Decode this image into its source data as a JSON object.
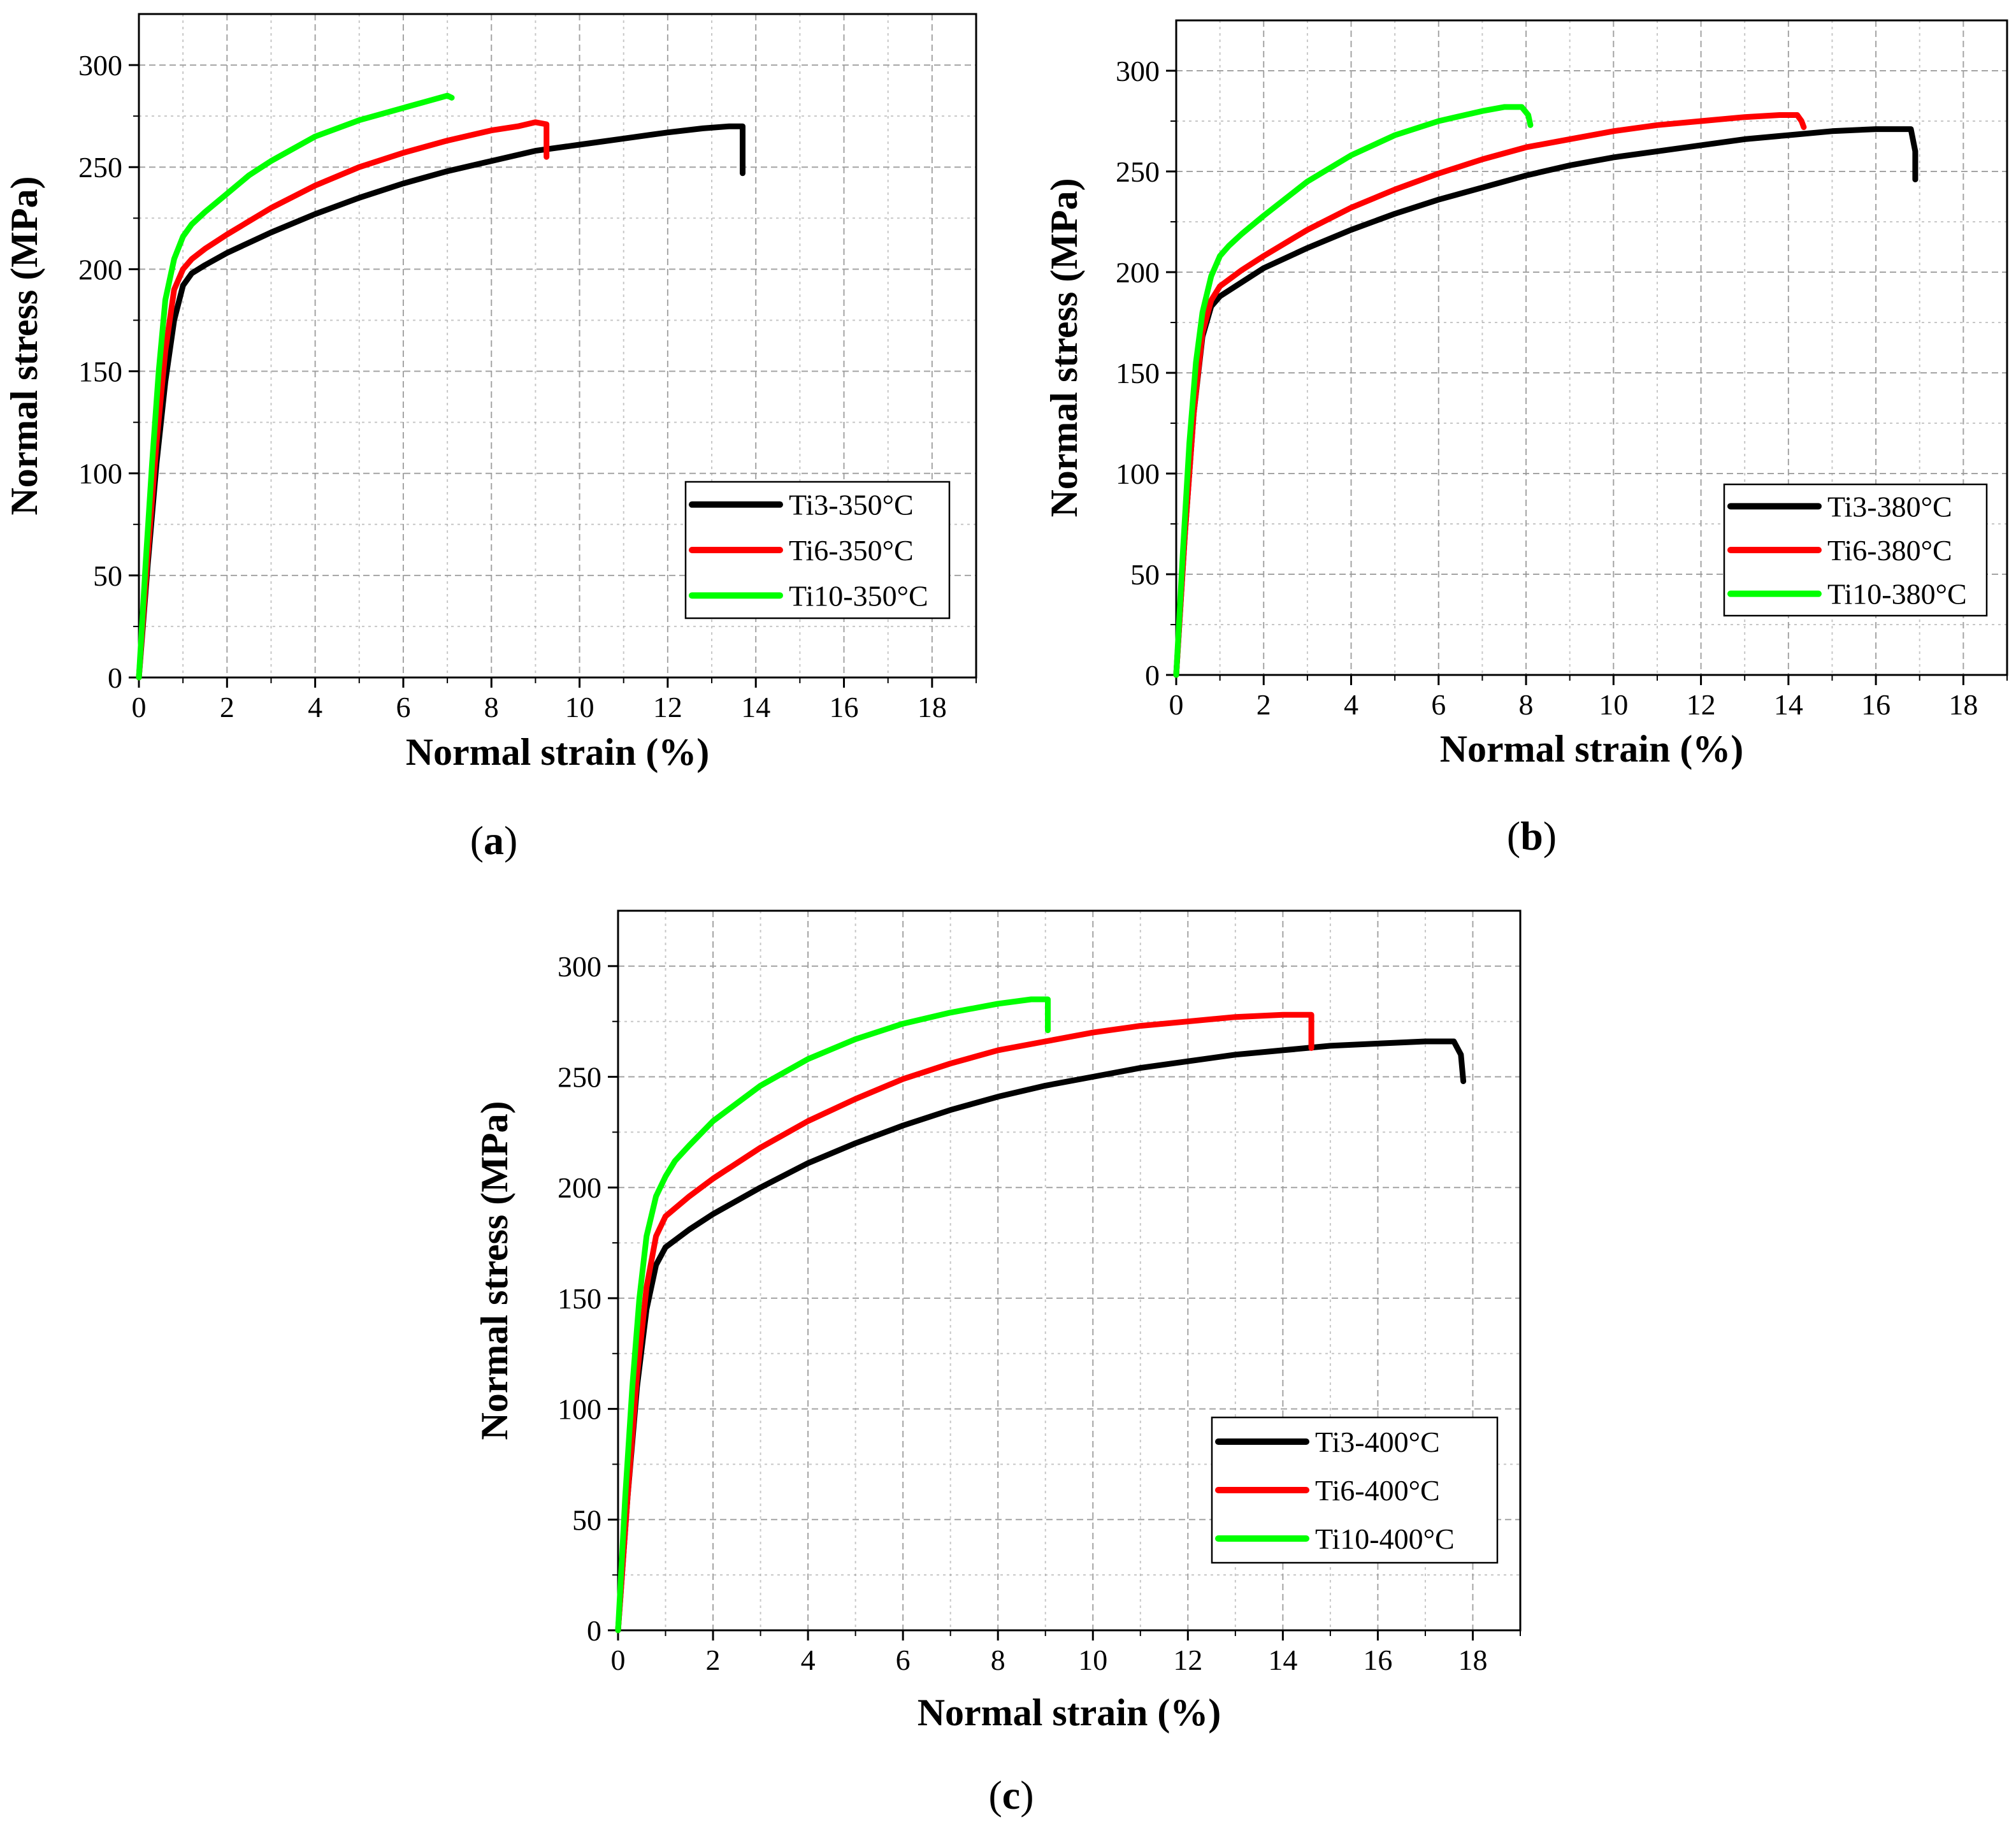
{
  "figure": {
    "panels": [
      {
        "id": "a",
        "label_open": "(",
        "label_letter": "a",
        "label_close": ")"
      },
      {
        "id": "b",
        "label_open": "(",
        "label_letter": "b",
        "label_close": ")"
      },
      {
        "id": "c",
        "label_open": "(",
        "label_letter": "c",
        "label_close": ")"
      }
    ]
  },
  "colors": {
    "Ti3": "#000000",
    "Ti6": "#ff0000",
    "Ti10": "#00ff00",
    "grid": "#9a9a9a",
    "axis": "#000000"
  },
  "chart_data": [
    {
      "type": "line",
      "panel": "a",
      "xlabel": "Normal strain (%)",
      "ylabel": "Normal stress (MPa)",
      "xlim": [
        0,
        19
      ],
      "ylim": [
        0,
        325
      ],
      "xticks": [
        0,
        2,
        4,
        6,
        8,
        10,
        12,
        14,
        16,
        18
      ],
      "yticks": [
        0,
        50,
        100,
        150,
        200,
        250,
        300
      ],
      "grid": true,
      "legend": "bottom-right",
      "series": [
        {
          "name": "Ti3-350°C",
          "color_key": "Ti3",
          "x": [
            0,
            0.2,
            0.4,
            0.6,
            0.8,
            1.0,
            1.2,
            1.5,
            2,
            3,
            4,
            5,
            6,
            7,
            8,
            9,
            10,
            11,
            12,
            12.8,
            13.4,
            13.7,
            13.7,
            13.7
          ],
          "y": [
            0,
            55,
            105,
            145,
            175,
            192,
            198,
            202,
            208,
            218,
            227,
            235,
            242,
            248,
            253,
            258,
            261,
            264,
            267,
            269,
            270,
            270,
            262,
            247
          ]
        },
        {
          "name": "Ti6-350°C",
          "color_key": "Ti6",
          "x": [
            0,
            0.2,
            0.4,
            0.6,
            0.8,
            1.0,
            1.2,
            1.5,
            2,
            3,
            4,
            5,
            6,
            7,
            8,
            8.6,
            9.0,
            9.25,
            9.25,
            9.25
          ],
          "y": [
            0,
            60,
            115,
            160,
            190,
            200,
            205,
            210,
            217,
            230,
            241,
            250,
            257,
            263,
            268,
            270,
            272,
            271,
            263,
            255
          ]
        },
        {
          "name": "Ti10-350°C",
          "color_key": "Ti10",
          "x": [
            0,
            0.15,
            0.3,
            0.45,
            0.6,
            0.8,
            1.0,
            1.2,
            1.5,
            2,
            2.5,
            3,
            4,
            5,
            6,
            6.5,
            7.0,
            7.1
          ],
          "y": [
            0,
            55,
            105,
            150,
            185,
            205,
            216,
            222,
            228,
            237,
            246,
            253,
            265,
            273,
            279,
            282,
            285,
            284
          ]
        }
      ]
    },
    {
      "type": "line",
      "panel": "b",
      "xlabel": "Normal strain (%)",
      "ylabel": "Normal stress (MPa)",
      "xlim": [
        0,
        19
      ],
      "ylim": [
        0,
        325
      ],
      "xticks": [
        0,
        2,
        4,
        6,
        8,
        10,
        12,
        14,
        16,
        18
      ],
      "yticks": [
        0,
        50,
        100,
        150,
        200,
        250,
        300
      ],
      "grid": true,
      "legend": "bottom-right",
      "series": [
        {
          "name": "Ti3-380°C",
          "color_key": "Ti3",
          "x": [
            0,
            0.2,
            0.4,
            0.6,
            0.8,
            1.0,
            1.5,
            2,
            3,
            4,
            5,
            6,
            7,
            8,
            9,
            10,
            11,
            12,
            13,
            14,
            15,
            16,
            16.8,
            16.9,
            16.9
          ],
          "y": [
            0,
            70,
            130,
            168,
            183,
            188,
            195,
            202,
            212,
            221,
            229,
            236,
            242,
            248,
            253,
            257,
            260,
            263,
            266,
            268,
            270,
            271,
            271,
            260,
            246
          ]
        },
        {
          "name": "Ti6-380°C",
          "color_key": "Ti6",
          "x": [
            0,
            0.2,
            0.4,
            0.6,
            0.8,
            1.0,
            1.5,
            2,
            3,
            4,
            5,
            6,
            7,
            8,
            9,
            10,
            11,
            12,
            13,
            13.8,
            14.2,
            14.3,
            14.35
          ],
          "y": [
            0,
            70,
            130,
            170,
            186,
            193,
            201,
            208,
            221,
            232,
            241,
            249,
            256,
            262,
            266,
            270,
            273,
            275,
            277,
            278,
            278,
            275,
            272
          ]
        },
        {
          "name": "Ti10-380°C",
          "color_key": "Ti10",
          "x": [
            0,
            0.15,
            0.3,
            0.45,
            0.6,
            0.8,
            1.0,
            1.2,
            1.5,
            2,
            3,
            4,
            5,
            6,
            7,
            7.5,
            7.9,
            8.05,
            8.1
          ],
          "y": [
            0,
            60,
            115,
            155,
            180,
            198,
            208,
            213,
            219,
            228,
            245,
            258,
            268,
            275,
            280,
            282,
            282,
            278,
            273
          ]
        }
      ]
    },
    {
      "type": "line",
      "panel": "c",
      "xlabel": "Normal strain (%)",
      "ylabel": "Normal stress (MPa)",
      "xlim": [
        0,
        19
      ],
      "ylim": [
        0,
        325
      ],
      "xticks": [
        0,
        2,
        4,
        6,
        8,
        10,
        12,
        14,
        16,
        18
      ],
      "yticks": [
        0,
        50,
        100,
        150,
        200,
        250,
        300
      ],
      "grid": true,
      "legend": "bottom-right",
      "series": [
        {
          "name": "Ti3-400°C",
          "color_key": "Ti3",
          "x": [
            0,
            0.2,
            0.4,
            0.6,
            0.8,
            1.0,
            1.5,
            2,
            3,
            4,
            5,
            6,
            7,
            8,
            9,
            10,
            11,
            12,
            13,
            14,
            15,
            16,
            17,
            17.6,
            17.75,
            17.8
          ],
          "y": [
            0,
            60,
            110,
            145,
            165,
            173,
            181,
            188,
            200,
            211,
            220,
            228,
            235,
            241,
            246,
            250,
            254,
            257,
            260,
            262,
            264,
            265,
            266,
            266,
            260,
            248
          ]
        },
        {
          "name": "Ti6-400°C",
          "color_key": "Ti6",
          "x": [
            0,
            0.2,
            0.4,
            0.6,
            0.8,
            1.0,
            1.5,
            2,
            3,
            4,
            5,
            6,
            7,
            8,
            9,
            10,
            11,
            12,
            13,
            14,
            14.6,
            14.6,
            14.6
          ],
          "y": [
            0,
            60,
            115,
            155,
            178,
            187,
            196,
            204,
            218,
            230,
            240,
            249,
            256,
            262,
            266,
            270,
            273,
            275,
            277,
            278,
            278,
            270,
            263
          ]
        },
        {
          "name": "Ti10-400°C",
          "color_key": "Ti10",
          "x": [
            0,
            0.15,
            0.3,
            0.45,
            0.6,
            0.8,
            1.0,
            1.2,
            1.5,
            2,
            3,
            4,
            5,
            6,
            7,
            8,
            8.7,
            9.05,
            9.05,
            9.05
          ],
          "y": [
            0,
            60,
            110,
            150,
            178,
            196,
            205,
            212,
            219,
            230,
            246,
            258,
            267,
            274,
            279,
            283,
            285,
            285,
            277,
            271
          ]
        }
      ]
    }
  ]
}
